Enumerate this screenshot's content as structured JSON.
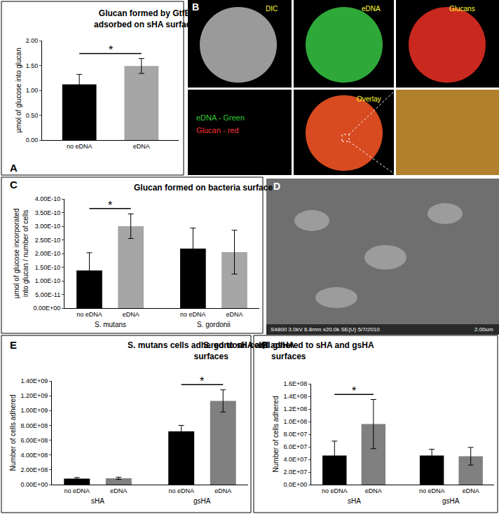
{
  "chart_data": [
    {
      "label": "A",
      "type": "bar",
      "title": "Glucan formed by GtfB adsorbed on sHA surface",
      "y_label": "µmol of glucose into glucan",
      "categories": [
        "no eDNA",
        "eDNA"
      ],
      "values": [
        1.12,
        1.49
      ],
      "errors": [
        0.2,
        0.15
      ],
      "colors": [
        "#000000",
        "#a6a6a6"
      ],
      "ylim": [
        0,
        2
      ],
      "yticks": [
        {
          "value": 0,
          "label": "0.00"
        },
        {
          "value": 0.5,
          "label": "0.50"
        },
        {
          "value": 1,
          "label": "1.00"
        },
        {
          "value": 1.5,
          "label": "1.50"
        },
        {
          "value": 2,
          "label": "2.00"
        }
      ],
      "grid": false,
      "significance": [
        {
          "label": "*",
          "categories": [
            "no eDNA",
            "eDNA"
          ]
        }
      ]
    },
    {
      "label": "C",
      "type": "bar",
      "title": "Glucan formed on bacteria surface",
      "y_label": "µmol of glucose incorporated into glucan / number of cells",
      "categories": [
        "S. mutans",
        "S. gordonii"
      ],
      "series": [
        {
          "name": "no eDNA",
          "color": "#000000",
          "values": [
            1.38e-10,
            2.18e-10
          ],
          "errors": [
            6.5e-11,
            7.5e-11
          ]
        },
        {
          "name": "eDNA",
          "color": "#a6a6a6",
          "values": [
            3e-10,
            2.05e-10
          ],
          "errors": [
            4.5e-11,
            8e-11
          ]
        }
      ],
      "ylim": [
        0,
        4e-10
      ],
      "yticks": [
        {
          "value": 0,
          "label": "0.00E+00"
        },
        {
          "value": 5e-11,
          "label": "5.00E-11"
        },
        {
          "value": 1e-10,
          "label": "1.00E-10"
        },
        {
          "value": 1.5e-10,
          "label": "1.50E-10"
        },
        {
          "value": 2e-10,
          "label": "2.00E-10"
        },
        {
          "value": 2.5e-10,
          "label": "2.50E-10"
        },
        {
          "value": 3e-10,
          "label": "3.00E-10"
        },
        {
          "value": 3.5e-10,
          "label": "3.50E-10"
        },
        {
          "value": 4e-10,
          "label": "4.00E-10"
        }
      ],
      "grid": false,
      "significance": [
        {
          "label": "*",
          "category": "S. mutans"
        }
      ]
    },
    {
      "label": "E",
      "type": "bar",
      "title": "S. mutans cells adhered to sHA and gsHA surfaces",
      "y_label": "Number of cells adhered",
      "categories": [
        "sHA",
        "gsHA"
      ],
      "series": [
        {
          "name": "no eDNA",
          "color": "#000000",
          "values": [
            80000000.0,
            720000000.0
          ],
          "errors": [
            15000000.0,
            80000000.0
          ]
        },
        {
          "name": "eDNA",
          "color": "#808080",
          "values": [
            85000000.0,
            1130000000.0
          ],
          "errors": [
            15000000.0,
            150000000.0
          ]
        }
      ],
      "ylim": [
        0,
        1400000000.0
      ],
      "yticks": [
        {
          "value": 0,
          "label": "0.00E+00"
        },
        {
          "value": 200000000.0,
          "label": "2.00E+08"
        },
        {
          "value": 400000000.0,
          "label": "4.00E+08"
        },
        {
          "value": 600000000.0,
          "label": "6.00E+08"
        },
        {
          "value": 800000000.0,
          "label": "8.00E+08"
        },
        {
          "value": 1000000000.0,
          "label": "1.00E+09"
        },
        {
          "value": 1200000000.0,
          "label": "1.20E+09"
        },
        {
          "value": 1400000000.0,
          "label": "1.40E+09"
        }
      ],
      "grid": false,
      "significance": [
        {
          "label": "*",
          "category": "gsHA"
        }
      ]
    },
    {
      "label": "F",
      "type": "bar",
      "title": "S. gordonii cells adhered to sHA and gsHA surfaces",
      "y_label": "Number of cells adhered",
      "categories": [
        "sHA",
        "gsHA"
      ],
      "series": [
        {
          "name": "no eDNA",
          "color": "#000000",
          "values": [
            46000000.0,
            46000000.0
          ],
          "errors": [
            23000000.0,
            10000000.0
          ]
        },
        {
          "name": "eDNA",
          "color": "#808080",
          "values": [
            96000000.0,
            45000000.0
          ],
          "errors": [
            39000000.0,
            14000000.0
          ]
        }
      ],
      "ylim": [
        0,
        160000000.0
      ],
      "yticks": [
        {
          "value": 0,
          "label": "0.0E+00"
        },
        {
          "value": 20000000.0,
          "label": "2.0E+07"
        },
        {
          "value": 40000000.0,
          "label": "4.0E+07"
        },
        {
          "value": 60000000.0,
          "label": "6.0E+07"
        },
        {
          "value": 80000000.0,
          "label": "8.0E+07"
        },
        {
          "value": 100000000.0,
          "label": "1.0E+08"
        },
        {
          "value": 120000000.0,
          "label": "1.2E+08"
        },
        {
          "value": 140000000.0,
          "label": "1.4E+08"
        },
        {
          "value": 160000000.0,
          "label": "1.6E+08"
        }
      ],
      "grid": false,
      "significance": [
        {
          "label": "*",
          "category": "sHA"
        }
      ]
    }
  ],
  "images": [
    {
      "label": "B",
      "tiles": [
        "DIC",
        "eDNA",
        "Glucans",
        "Overlay"
      ],
      "key": [
        "eDNA - Green",
        "Glucan - red"
      ]
    },
    {
      "label": "D",
      "caption": "S4800 3.0kV 6.8mm x20.0k SE(U) 5/7/2010",
      "scale": "2.00um"
    }
  ]
}
